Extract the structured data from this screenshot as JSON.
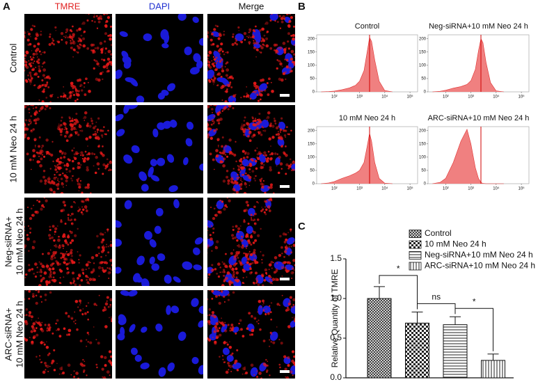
{
  "panel_labels": [
    "A",
    "B",
    "C"
  ],
  "panel_a": {
    "columns": [
      "TMRE",
      "DAPI",
      "Merge"
    ],
    "rows": [
      [
        "Control"
      ],
      [
        "10 mM Neo 24 h"
      ],
      [
        "Neg-siRNA+",
        "10 mM Neo 24 h"
      ],
      [
        "ARC-siRNA+",
        "10 mM Neo 24 h"
      ]
    ]
  },
  "chart_data": [
    {
      "type": "area",
      "title": "Control",
      "color": "#f08080",
      "line_color": "#e03030",
      "xlog": true,
      "x": [
        30,
        60,
        100,
        200,
        400,
        700,
        1000,
        1500,
        2000,
        2500,
        3000,
        4000,
        6000,
        10000,
        20000
      ],
      "values": [
        0,
        1,
        3,
        8,
        15,
        25,
        40,
        80,
        150,
        205,
        190,
        120,
        40,
        5,
        0
      ],
      "reference_line": 2500,
      "xlim": [
        20,
        200000
      ],
      "ylim": [
        0,
        215
      ],
      "xticks": [
        {
          "value": 100,
          "label": "10²"
        },
        {
          "value": 1000,
          "label": "10³"
        },
        {
          "value": 10000,
          "label": "10⁴"
        },
        {
          "value": 100000,
          "label": "10⁵"
        }
      ],
      "yticks": [
        0,
        50,
        100,
        150,
        200
      ]
    },
    {
      "type": "area",
      "title": "Neg-siRNA+10 mM Neo 24 h",
      "color": "#f08080",
      "line_color": "#e03030",
      "xlog": true,
      "x": [
        30,
        60,
        100,
        200,
        400,
        700,
        1000,
        1500,
        2000,
        2500,
        3000,
        4000,
        6000,
        10000,
        20000
      ],
      "values": [
        0,
        2,
        6,
        14,
        20,
        28,
        42,
        85,
        155,
        200,
        185,
        110,
        35,
        4,
        0
      ],
      "reference_line": 2500,
      "xlim": [
        20,
        200000
      ],
      "ylim": [
        0,
        215
      ],
      "xticks": [
        {
          "value": 100,
          "label": "10²"
        },
        {
          "value": 1000,
          "label": "10³"
        },
        {
          "value": 10000,
          "label": "10⁴"
        },
        {
          "value": 100000,
          "label": "10⁵"
        }
      ],
      "yticks": [
        0,
        50,
        100,
        150,
        200
      ]
    },
    {
      "type": "area",
      "title": "10 mM Neo 24 h",
      "color": "#f08080",
      "line_color": "#e03030",
      "xlog": true,
      "x": [
        30,
        60,
        100,
        200,
        400,
        700,
        1000,
        1500,
        2000,
        2500,
        3000,
        4000,
        6000,
        10000,
        20000
      ],
      "values": [
        0,
        3,
        8,
        20,
        30,
        40,
        50,
        80,
        140,
        190,
        160,
        80,
        20,
        2,
        0
      ],
      "reference_line": 2500,
      "xlim": [
        20,
        200000
      ],
      "ylim": [
        0,
        215
      ],
      "xticks": [
        {
          "value": 100,
          "label": "10²"
        },
        {
          "value": 1000,
          "label": "10³"
        },
        {
          "value": 10000,
          "label": "10⁴"
        },
        {
          "value": 100000,
          "label": "10⁵"
        }
      ],
      "yticks": [
        0,
        50,
        100,
        150,
        200
      ]
    },
    {
      "type": "area",
      "title": "ARC-siRNA+10 mM Neo 24 h",
      "color": "#f08080",
      "line_color": "#e03030",
      "xlog": true,
      "x": [
        30,
        60,
        100,
        200,
        400,
        700,
        1000,
        1500,
        2000,
        2500,
        3000,
        4000,
        6000,
        10000,
        20000
      ],
      "values": [
        0,
        5,
        20,
        80,
        160,
        205,
        150,
        60,
        20,
        5,
        1,
        0,
        0,
        0,
        0
      ],
      "reference_line": 2500,
      "xlim": [
        20,
        200000
      ],
      "ylim": [
        0,
        215
      ],
      "xticks": [
        {
          "value": 100,
          "label": "10²"
        },
        {
          "value": 1000,
          "label": "10³"
        },
        {
          "value": 10000,
          "label": "10⁴"
        },
        {
          "value": 100000,
          "label": "10⁵"
        }
      ],
      "yticks": [
        0,
        50,
        100,
        150,
        200
      ]
    },
    {
      "type": "bar",
      "y_label": "Relative Quantity of TMRE",
      "categories": [
        "Control",
        "10 mM Neo 24 h",
        "Neg-siRNA+10 mM Neo 24 h",
        "ARC-siRNA+10 mM Neo 24 h"
      ],
      "values": [
        1.0,
        0.69,
        0.67,
        0.22
      ],
      "errors": [
        0.15,
        0.14,
        0.1,
        0.08
      ],
      "patterns": [
        "crosshatch",
        "checker",
        "horizontal",
        "vertical"
      ],
      "annotations": [
        "*",
        "ns",
        "*"
      ],
      "ylim": [
        0,
        1.5
      ],
      "yticks": [
        {
          "value": 0,
          "label": "0.0"
        },
        {
          "value": 0.5,
          "label": "0.5"
        },
        {
          "value": 1.0,
          "label": "1.0"
        },
        {
          "value": 1.5,
          "label": "1.5"
        }
      ]
    }
  ]
}
